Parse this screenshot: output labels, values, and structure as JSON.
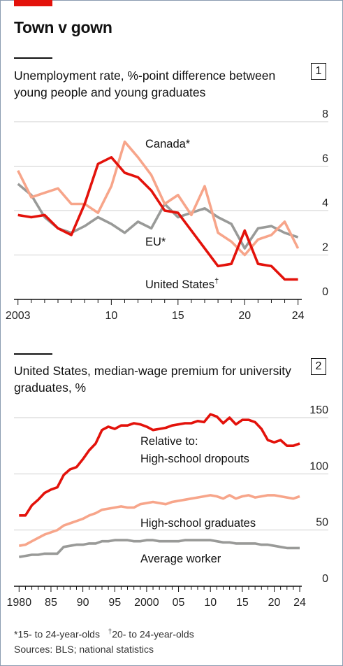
{
  "header": {
    "title": "Town v gown"
  },
  "chart1": {
    "badge": "1",
    "subtitle": "Unemployment rate, %-point difference between young people and young graduates"
  },
  "chart2": {
    "badge": "2",
    "subtitle": "United States, median-wage premium for university graduates, %"
  },
  "footnotes": {
    "note1": "*15- to 24-year-olds",
    "note2_mark": "†",
    "note2": "20- to 24-year-olds",
    "sources": "Sources: BLS; national statistics"
  },
  "colors": {
    "us": "#e3120b",
    "canada": "#f7a58a",
    "eu": "#999a98",
    "grid": "#cfcfcf"
  },
  "chart_data": [
    {
      "type": "line",
      "title": "Unemployment rate, %-point difference between young people and young graduates",
      "x_ticks": [
        2003,
        2010,
        2015,
        2020,
        2024
      ],
      "x_tick_labels": [
        "2003",
        "10",
        "15",
        "20",
        "24"
      ],
      "xlim": [
        2002.7,
        2024.7
      ],
      "ylim": [
        0,
        8
      ],
      "y_ticks": [
        0,
        2,
        4,
        6,
        8
      ],
      "y_tick_labels": [
        "0",
        "2",
        "4",
        "6",
        "8"
      ],
      "grid": true,
      "series": [
        {
          "name": "United States",
          "label_mark": "†",
          "color_key": "us",
          "x": [
            2003,
            2004,
            2005,
            2006,
            2007,
            2008,
            2009,
            2010,
            2011,
            2012,
            2013,
            2014,
            2015,
            2016,
            2017,
            2018,
            2019,
            2020,
            2021,
            2022,
            2023,
            2024
          ],
          "y": [
            3.8,
            3.7,
            3.8,
            3.2,
            2.9,
            4.3,
            6.1,
            6.4,
            5.7,
            5.5,
            4.9,
            4.0,
            3.9,
            3.1,
            2.3,
            1.5,
            1.6,
            3.1,
            1.6,
            1.5,
            0.9,
            0.9
          ]
        },
        {
          "name": "Canada*",
          "color_key": "canada",
          "x": [
            2003,
            2004,
            2005,
            2006,
            2007,
            2008,
            2009,
            2010,
            2011,
            2012,
            2013,
            2014,
            2015,
            2016,
            2017,
            2018,
            2019,
            2020,
            2021,
            2022,
            2023,
            2024
          ],
          "y": [
            5.8,
            4.6,
            4.8,
            5.0,
            4.3,
            4.3,
            3.9,
            5.1,
            7.1,
            6.4,
            5.6,
            4.3,
            4.7,
            3.8,
            5.1,
            3.0,
            2.6,
            2.0,
            2.7,
            2.9,
            3.5,
            2.3
          ]
        },
        {
          "name": "EU*",
          "color_key": "eu",
          "x": [
            2003,
            2004,
            2005,
            2006,
            2007,
            2008,
            2009,
            2010,
            2011,
            2012,
            2013,
            2014,
            2015,
            2016,
            2017,
            2018,
            2019,
            2020,
            2021,
            2022,
            2023,
            2024
          ],
          "y": [
            5.2,
            4.7,
            3.7,
            3.2,
            3.0,
            3.3,
            3.7,
            3.4,
            3.0,
            3.5,
            3.2,
            4.3,
            3.7,
            3.9,
            4.1,
            3.7,
            3.4,
            2.3,
            3.2,
            3.3,
            3.0,
            2.8
          ]
        }
      ]
    },
    {
      "type": "line",
      "title": "United States, median-wage premium for university graduates, %",
      "x_ticks": [
        1980,
        1985,
        1990,
        1995,
        2000,
        2005,
        2010,
        2015,
        2020,
        2024
      ],
      "x_tick_labels": [
        "1980",
        "85",
        "90",
        "95",
        "2000",
        "05",
        "10",
        "15",
        "20",
        "24"
      ],
      "xlim": [
        1979.2,
        2025.2
      ],
      "ylim": [
        0,
        150
      ],
      "y_ticks": [
        0,
        50,
        100,
        150
      ],
      "y_tick_labels": [
        "0",
        "50",
        "100",
        "150"
      ],
      "grid": true,
      "series": [
        {
          "name": "Relative to: High-school dropouts",
          "label_lines": [
            "Relative to:",
            "High-school dropouts"
          ],
          "color_key": "us",
          "x": [
            1980,
            1981,
            1982,
            1983,
            1984,
            1985,
            1986,
            1987,
            1988,
            1989,
            1990,
            1991,
            1992,
            1993,
            1994,
            1995,
            1996,
            1997,
            1998,
            1999,
            2000,
            2001,
            2002,
            2003,
            2004,
            2005,
            2006,
            2007,
            2008,
            2009,
            2010,
            2011,
            2012,
            2013,
            2014,
            2015,
            2016,
            2017,
            2018,
            2019,
            2020,
            2021,
            2022,
            2023,
            2024
          ],
          "y": [
            63,
            63,
            72,
            77,
            83,
            86,
            88,
            99,
            104,
            106,
            113,
            121,
            127,
            139,
            142,
            140,
            143,
            143,
            145,
            144,
            142,
            139,
            140,
            141,
            143,
            144,
            145,
            145,
            147,
            146,
            153,
            151,
            145,
            150,
            144,
            148,
            148,
            146,
            140,
            130,
            128,
            130,
            125,
            125,
            127
          ]
        },
        {
          "name": "High-school graduates",
          "color_key": "canada",
          "x": [
            1980,
            1981,
            1982,
            1983,
            1984,
            1985,
            1986,
            1987,
            1988,
            1989,
            1990,
            1991,
            1992,
            1993,
            1994,
            1995,
            1996,
            1997,
            1998,
            1999,
            2000,
            2001,
            2002,
            2003,
            2004,
            2005,
            2006,
            2007,
            2008,
            2009,
            2010,
            2011,
            2012,
            2013,
            2014,
            2015,
            2016,
            2017,
            2018,
            2019,
            2020,
            2021,
            2022,
            2023,
            2024
          ],
          "y": [
            36,
            37,
            40,
            43,
            46,
            48,
            50,
            54,
            56,
            58,
            60,
            63,
            65,
            68,
            69,
            70,
            71,
            70,
            70,
            73,
            74,
            75,
            74,
            73,
            75,
            76,
            77,
            78,
            79,
            80,
            81,
            80,
            78,
            81,
            78,
            80,
            81,
            79,
            80,
            81,
            81,
            80,
            79,
            78,
            80
          ]
        },
        {
          "name": "Average worker",
          "color_key": "eu",
          "x": [
            1980,
            1981,
            1982,
            1983,
            1984,
            1985,
            1986,
            1987,
            1988,
            1989,
            1990,
            1991,
            1992,
            1993,
            1994,
            1995,
            1996,
            1997,
            1998,
            1999,
            2000,
            2001,
            2002,
            2003,
            2004,
            2005,
            2006,
            2007,
            2008,
            2009,
            2010,
            2011,
            2012,
            2013,
            2014,
            2015,
            2016,
            2017,
            2018,
            2019,
            2020,
            2021,
            2022,
            2023,
            2024
          ],
          "y": [
            26,
            27,
            28,
            28,
            29,
            29,
            29,
            35,
            36,
            37,
            37,
            38,
            38,
            40,
            40,
            41,
            41,
            41,
            40,
            40,
            41,
            41,
            40,
            40,
            40,
            40,
            41,
            41,
            41,
            41,
            41,
            40,
            39,
            39,
            38,
            38,
            38,
            38,
            37,
            37,
            36,
            35,
            34,
            34,
            34
          ]
        }
      ]
    }
  ]
}
